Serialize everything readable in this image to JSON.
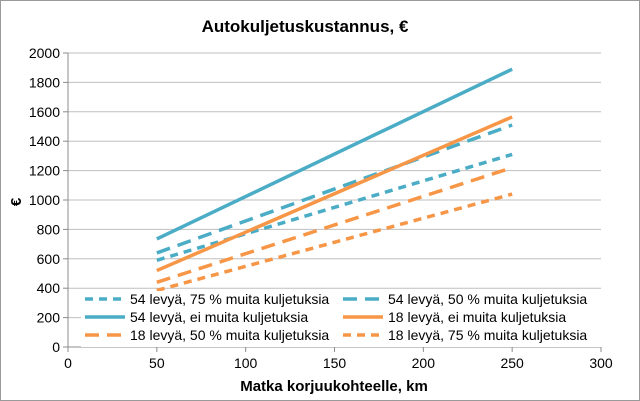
{
  "chart_data": {
    "type": "line",
    "title": "Autokuljetuskustannus, €",
    "xlabel": "Matka korjuukohteelle, km",
    "ylabel": "€",
    "xlim": [
      0,
      300
    ],
    "ylim": [
      0,
      2000
    ],
    "xticks": [
      0,
      50,
      100,
      150,
      200,
      250,
      300
    ],
    "yticks": [
      0,
      200,
      400,
      600,
      800,
      1000,
      1200,
      1400,
      1600,
      1800,
      2000
    ],
    "grid": "horizontal",
    "legend_position": "bottom-inside",
    "series": [
      {
        "name": "54 levyä, 75 % muita kuljetuksia",
        "color": "#4bacc6",
        "dash": "short",
        "x": [
          50,
          250
        ],
        "y": [
          590,
          1310
        ]
      },
      {
        "name": "54 levyä, 50 % muita kuljetuksia",
        "color": "#4bacc6",
        "dash": "long",
        "x": [
          50,
          250
        ],
        "y": [
          640,
          1510
        ]
      },
      {
        "name": "54 levyä, ei muita kuljetuksia",
        "color": "#4bacc6",
        "dash": "solid",
        "x": [
          50,
          250
        ],
        "y": [
          735,
          1890
        ]
      },
      {
        "name": "18 levyä, ei muita kuljetuksia",
        "color": "#f79646",
        "dash": "solid",
        "x": [
          50,
          250
        ],
        "y": [
          520,
          1565
        ]
      },
      {
        "name": "18 levyä, 50 % muita kuljetuksia",
        "color": "#f79646",
        "dash": "long",
        "x": [
          50,
          250
        ],
        "y": [
          440,
          1220
        ]
      },
      {
        "name": "18 levyä, 75 % muita kuljetuksia",
        "color": "#f79646",
        "dash": "short",
        "x": [
          50,
          250
        ],
        "y": [
          385,
          1040
        ]
      }
    ]
  }
}
